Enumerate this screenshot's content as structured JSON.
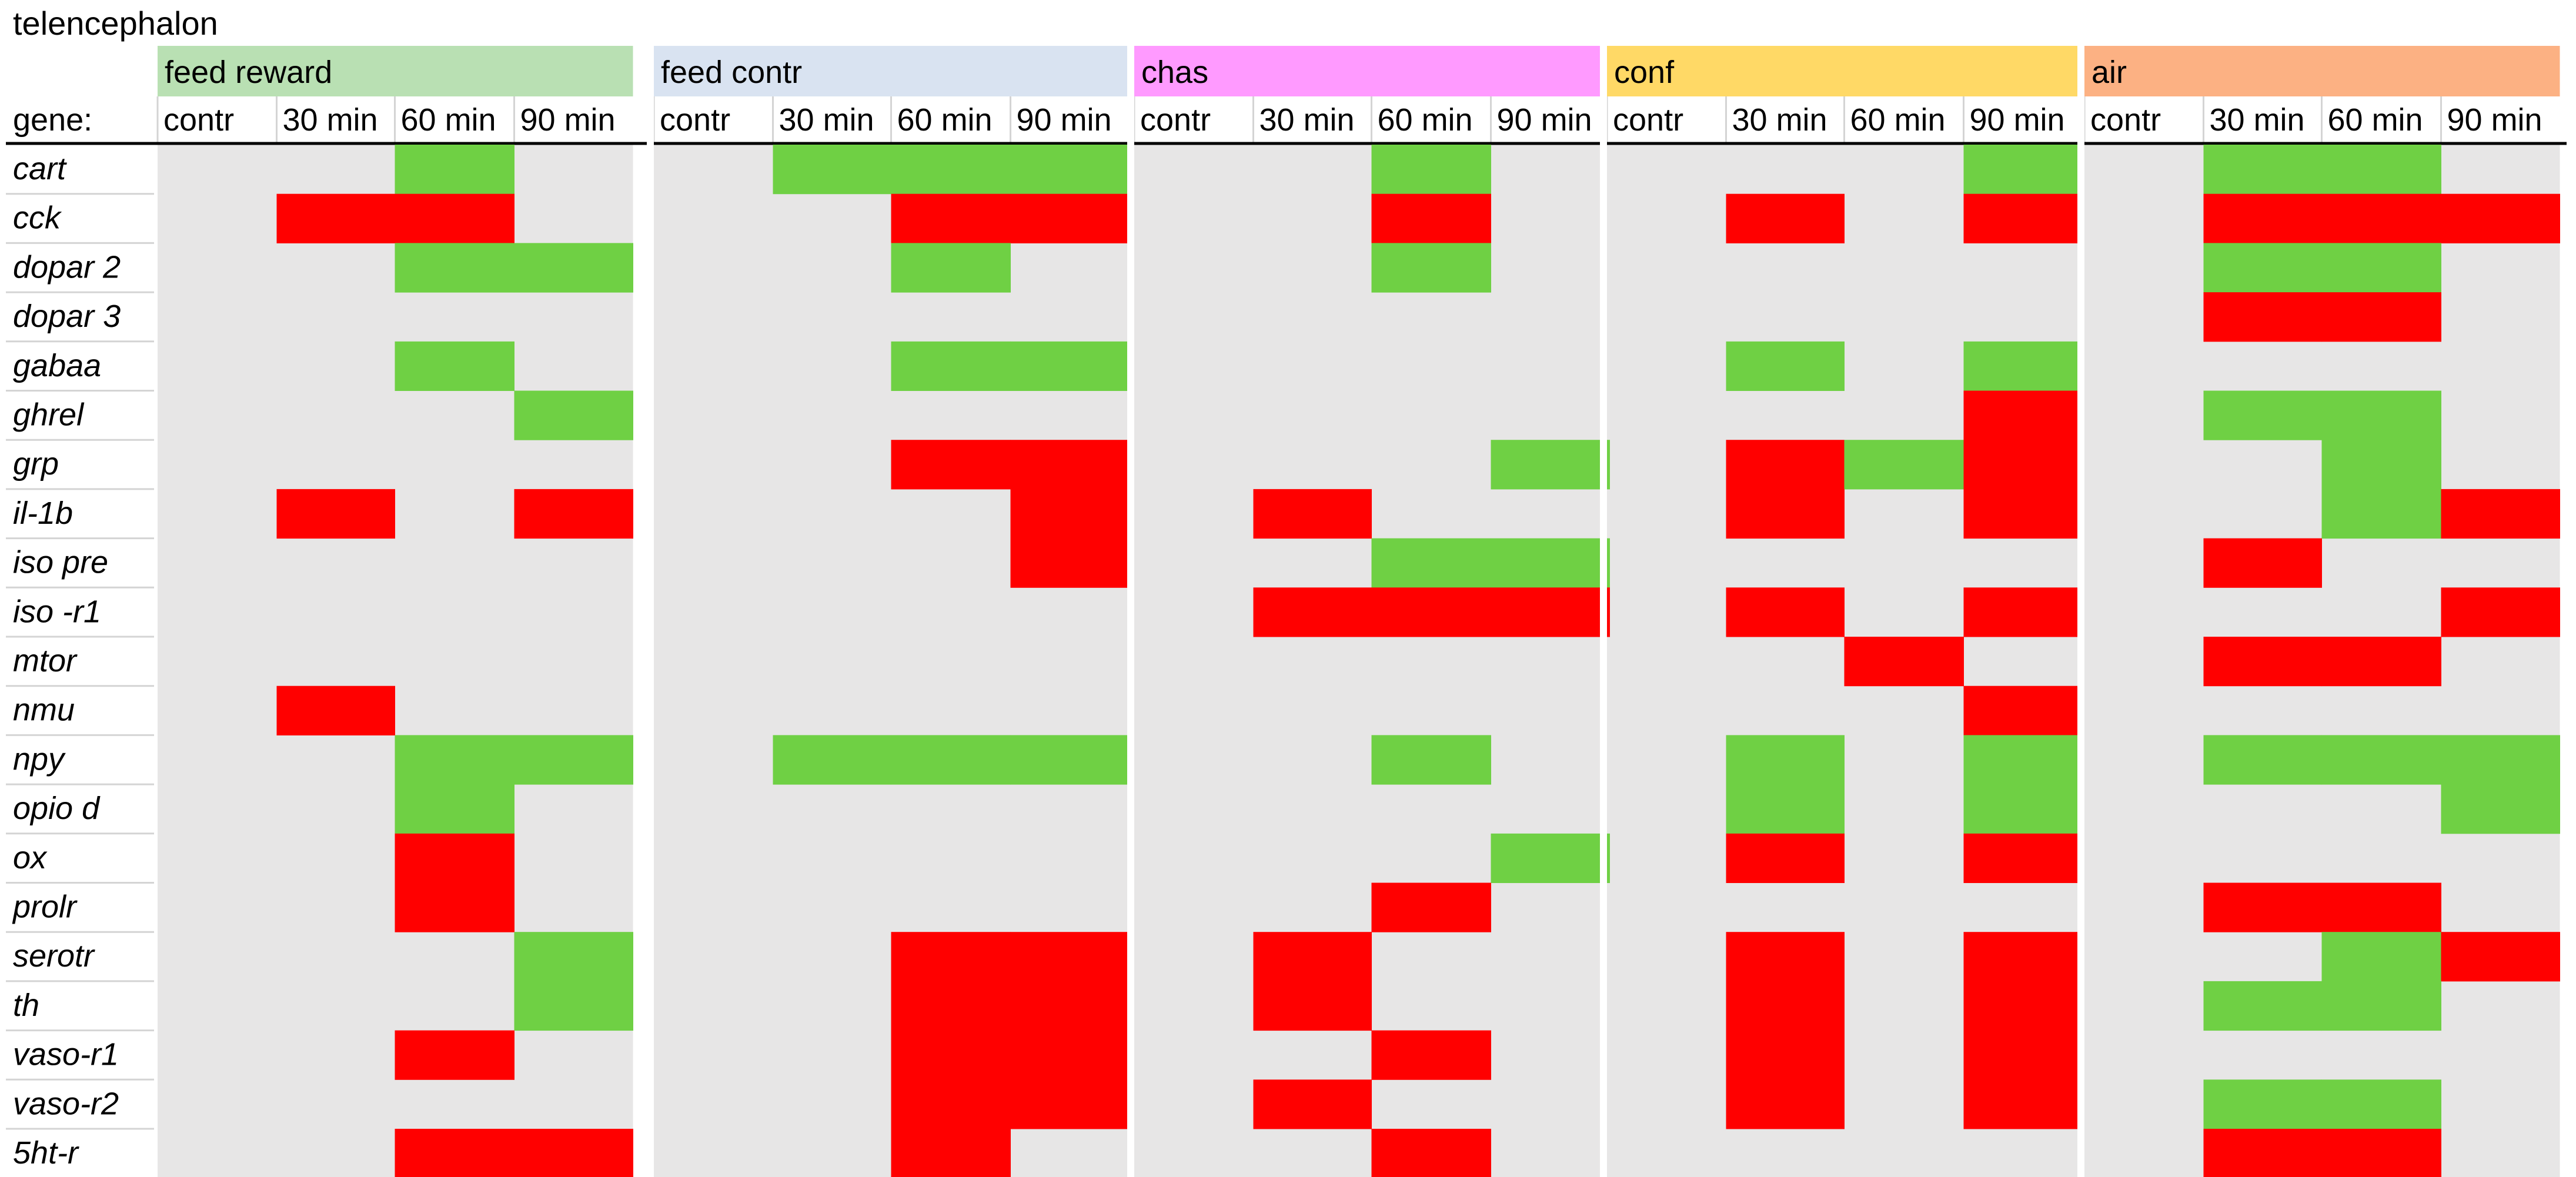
{
  "title": "telencephalon",
  "gene_header": "gene:",
  "chart_data": {
    "type": "heatmap",
    "title": "telencephalon",
    "row_header": "gene:",
    "groups": [
      {
        "name": "feed reward",
        "color": "#b9e0b3"
      },
      {
        "name": "feed contr",
        "color": "#d9e3f1"
      },
      {
        "name": "chas",
        "color": "#ff9aff"
      },
      {
        "name": "conf",
        "color": "#ffd966"
      },
      {
        "name": "air",
        "color": "#fcb183"
      }
    ],
    "columns": [
      "contr",
      "30 min",
      "60 min",
      "90 min"
    ],
    "rows": [
      "cart",
      "cck",
      "dopar 2",
      "dopar 3",
      "gabaa",
      "ghrel",
      "grp",
      "il-1b",
      "iso pre",
      "iso -r1",
      "mtor",
      "nmu",
      "npy",
      "opio d",
      "ox",
      "prolr",
      "serotr",
      "th",
      "vaso-r1",
      "vaso-r2",
      "5ht-r"
    ],
    "legend": {
      "0": "no change",
      "1": "green",
      "-1": "red"
    },
    "colors": {
      "none": "#e7e6e6",
      "up": "#6fd044",
      "down": "#ff0000"
    },
    "values": [
      [
        0,
        0,
        1,
        0,
        0,
        1,
        1,
        1,
        0,
        0,
        1,
        0,
        0,
        0,
        0,
        1,
        0,
        1,
        1,
        0
      ],
      [
        0,
        -1,
        -1,
        0,
        0,
        0,
        -1,
        -1,
        0,
        0,
        -1,
        0,
        0,
        -1,
        0,
        -1,
        0,
        -1,
        -1,
        -1
      ],
      [
        0,
        0,
        1,
        1,
        0,
        0,
        1,
        0,
        0,
        0,
        1,
        0,
        0,
        0,
        0,
        0,
        0,
        1,
        1,
        0
      ],
      [
        0,
        0,
        0,
        0,
        0,
        0,
        0,
        0,
        0,
        0,
        0,
        0,
        0,
        0,
        0,
        0,
        0,
        -1,
        -1,
        0
      ],
      [
        0,
        0,
        1,
        0,
        0,
        0,
        1,
        1,
        0,
        0,
        0,
        0,
        0,
        1,
        0,
        1,
        0,
        0,
        0,
        0
      ],
      [
        0,
        0,
        0,
        1,
        0,
        0,
        0,
        0,
        0,
        0,
        0,
        0,
        0,
        0,
        0,
        -1,
        0,
        1,
        1,
        0
      ],
      [
        0,
        0,
        0,
        0,
        0,
        0,
        -1,
        -1,
        0,
        0,
        0,
        1,
        0,
        -1,
        1,
        -1,
        0,
        0,
        1,
        0
      ],
      [
        0,
        -1,
        0,
        -1,
        0,
        0,
        0,
        -1,
        0,
        -1,
        0,
        0,
        0,
        -1,
        0,
        -1,
        0,
        0,
        1,
        -1
      ],
      [
        0,
        0,
        0,
        0,
        0,
        0,
        0,
        -1,
        0,
        0,
        1,
        1,
        0,
        0,
        0,
        0,
        0,
        -1,
        0,
        0
      ],
      [
        0,
        0,
        0,
        0,
        0,
        0,
        0,
        0,
        0,
        -1,
        -1,
        -1,
        0,
        -1,
        0,
        -1,
        0,
        0,
        0,
        -1
      ],
      [
        0,
        0,
        0,
        0,
        0,
        0,
        0,
        0,
        0,
        0,
        0,
        0,
        0,
        0,
        -1,
        0,
        0,
        -1,
        -1,
        0
      ],
      [
        0,
        -1,
        0,
        0,
        0,
        0,
        0,
        0,
        0,
        0,
        0,
        0,
        0,
        0,
        0,
        -1,
        0,
        0,
        0,
        0
      ],
      [
        0,
        0,
        1,
        1,
        0,
        1,
        1,
        1,
        0,
        0,
        1,
        0,
        0,
        1,
        0,
        1,
        0,
        1,
        1,
        1
      ],
      [
        0,
        0,
        1,
        0,
        0,
        0,
        0,
        0,
        0,
        0,
        0,
        0,
        0,
        1,
        0,
        1,
        0,
        0,
        0,
        1
      ],
      [
        0,
        0,
        -1,
        0,
        0,
        0,
        0,
        0,
        0,
        0,
        0,
        1,
        0,
        -1,
        0,
        -1,
        0,
        0,
        0,
        0
      ],
      [
        0,
        0,
        -1,
        0,
        0,
        0,
        0,
        0,
        0,
        0,
        -1,
        0,
        0,
        0,
        0,
        0,
        0,
        -1,
        -1,
        0
      ],
      [
        0,
        0,
        0,
        1,
        0,
        0,
        -1,
        -1,
        0,
        -1,
        0,
        0,
        0,
        -1,
        0,
        -1,
        0,
        0,
        1,
        -1
      ],
      [
        0,
        0,
        0,
        1,
        0,
        0,
        -1,
        -1,
        0,
        -1,
        0,
        0,
        0,
        -1,
        0,
        -1,
        0,
        1,
        1,
        0
      ],
      [
        0,
        0,
        -1,
        0,
        0,
        0,
        -1,
        -1,
        0,
        0,
        -1,
        0,
        0,
        -1,
        0,
        -1,
        0,
        0,
        0,
        0
      ],
      [
        0,
        0,
        0,
        0,
        0,
        0,
        -1,
        -1,
        0,
        -1,
        0,
        0,
        0,
        -1,
        0,
        -1,
        0,
        1,
        1,
        0
      ],
      [
        0,
        0,
        -1,
        -1,
        0,
        0,
        -1,
        0,
        0,
        0,
        -1,
        0,
        0,
        0,
        0,
        0,
        0,
        -1,
        -1,
        0
      ]
    ]
  }
}
